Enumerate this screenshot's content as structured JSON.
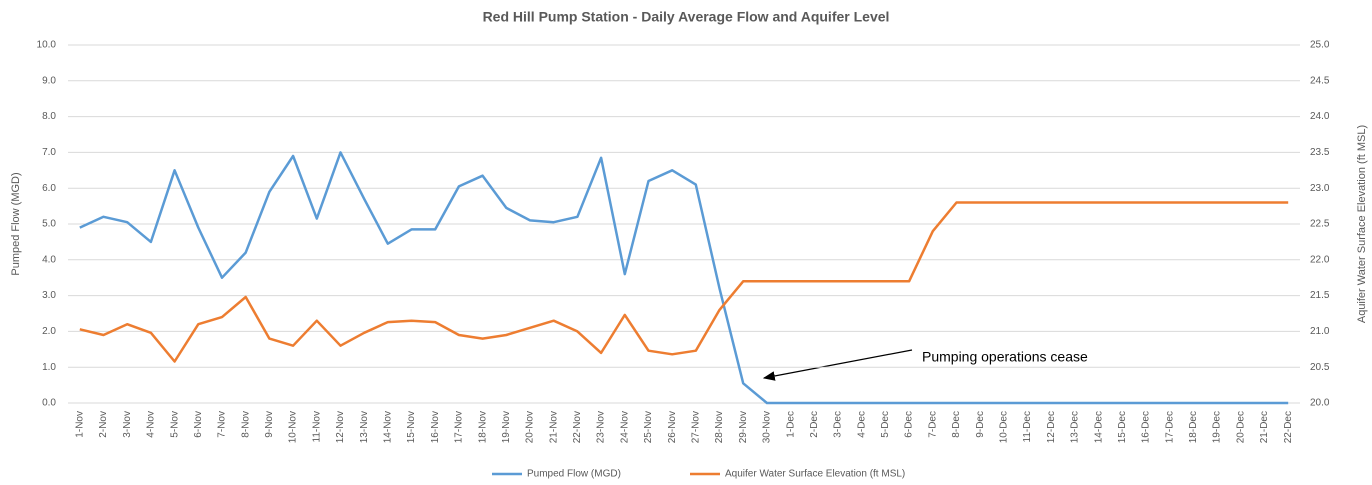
{
  "chart_data": {
    "type": "line",
    "title": "Red Hill Pump Station - Daily Average Flow and Aquifer Level",
    "y_label": "Pumped Flow (MGD)",
    "y2_label": "Aquifer Water Surface Elevation  (ft MSL)",
    "annotations": [
      "Pumping operations cease"
    ],
    "categories": [
      "1-Nov",
      "2-Nov",
      "3-Nov",
      "4-Nov",
      "5-Nov",
      "6-Nov",
      "7-Nov",
      "8-Nov",
      "9-Nov",
      "10-Nov",
      "11-Nov",
      "12-Nov",
      "13-Nov",
      "14-Nov",
      "15-Nov",
      "16-Nov",
      "17-Nov",
      "18-Nov",
      "19-Nov",
      "20-Nov",
      "21-Nov",
      "22-Nov",
      "23-Nov",
      "24-Nov",
      "25-Nov",
      "26-Nov",
      "27-Nov",
      "28-Nov",
      "29-Nov",
      "30-Nov",
      "1-Dec",
      "2-Dec",
      "3-Dec",
      "4-Dec",
      "5-Dec",
      "6-Dec",
      "7-Dec",
      "8-Dec",
      "9-Dec",
      "10-Dec",
      "11-Dec",
      "12-Dec",
      "13-Dec",
      "14-Dec",
      "15-Dec",
      "16-Dec",
      "17-Dec",
      "18-Dec",
      "19-Dec",
      "20-Dec",
      "21-Dec",
      "22-Dec"
    ],
    "series": [
      {
        "name": "Pumped Flow (MGD)",
        "color": "#5b9bd5",
        "axis": "y",
        "values": [
          4.9,
          5.2,
          5.05,
          4.5,
          6.5,
          4.9,
          3.5,
          4.2,
          5.9,
          6.9,
          5.15,
          7.0,
          5.7,
          4.45,
          4.85,
          4.85,
          6.05,
          6.35,
          5.45,
          5.1,
          5.05,
          5.2,
          6.85,
          3.6,
          6.2,
          6.5,
          6.1,
          3.2,
          0.55,
          0,
          0,
          0,
          0,
          0,
          0,
          0,
          0,
          0,
          0,
          0,
          0,
          0,
          0,
          0,
          0,
          0,
          0,
          0,
          0,
          0,
          0,
          0
        ]
      },
      {
        "name": "Aquifer Water Surface Elevation  (ft MSL)",
        "color": "#ed7d31",
        "axis": "y2",
        "values": [
          21.03,
          20.95,
          21.1,
          20.98,
          20.58,
          21.1,
          21.2,
          21.48,
          20.9,
          20.8,
          21.15,
          20.8,
          20.98,
          21.13,
          21.15,
          21.13,
          20.95,
          20.9,
          20.95,
          21.05,
          21.15,
          21.0,
          20.7,
          21.23,
          20.73,
          20.68,
          20.73,
          21.3,
          21.7,
          21.7,
          21.7,
          21.7,
          21.7,
          21.7,
          21.7,
          21.7,
          22.4,
          22.8,
          22.8,
          22.8,
          22.8,
          22.8,
          22.8,
          22.8,
          22.8,
          22.8,
          22.8,
          22.8,
          22.8,
          22.8,
          22.8,
          22.8
        ]
      }
    ],
    "ylim": [
      0,
      10
    ],
    "yticks": [
      {
        "value": 0,
        "label": "0.0"
      },
      {
        "value": 1,
        "label": "1.0"
      },
      {
        "value": 2,
        "label": "2.0"
      },
      {
        "value": 3,
        "label": "3.0"
      },
      {
        "value": 4,
        "label": "4.0"
      },
      {
        "value": 5,
        "label": "5.0"
      },
      {
        "value": 6,
        "label": "6.0"
      },
      {
        "value": 7,
        "label": "7.0"
      },
      {
        "value": 8,
        "label": "8.0"
      },
      {
        "value": 9,
        "label": "9.0"
      },
      {
        "value": 10,
        "label": "10.0"
      }
    ],
    "y2lim": [
      20,
      25
    ],
    "y2ticks": [
      {
        "value": 20,
        "label": "20.0"
      },
      {
        "value": 20.5,
        "label": "20.5"
      },
      {
        "value": 21,
        "label": "21.0"
      },
      {
        "value": 21.5,
        "label": "21.5"
      },
      {
        "value": 22,
        "label": "22.0"
      },
      {
        "value": 22.5,
        "label": "22.5"
      },
      {
        "value": 23,
        "label": "23.0"
      },
      {
        "value": 23.5,
        "label": "23.5"
      },
      {
        "value": 24,
        "label": "24.0"
      },
      {
        "value": 24.5,
        "label": "24.5"
      },
      {
        "value": 25,
        "label": "25.0"
      }
    ],
    "grid": true,
    "legend": "bottom"
  }
}
